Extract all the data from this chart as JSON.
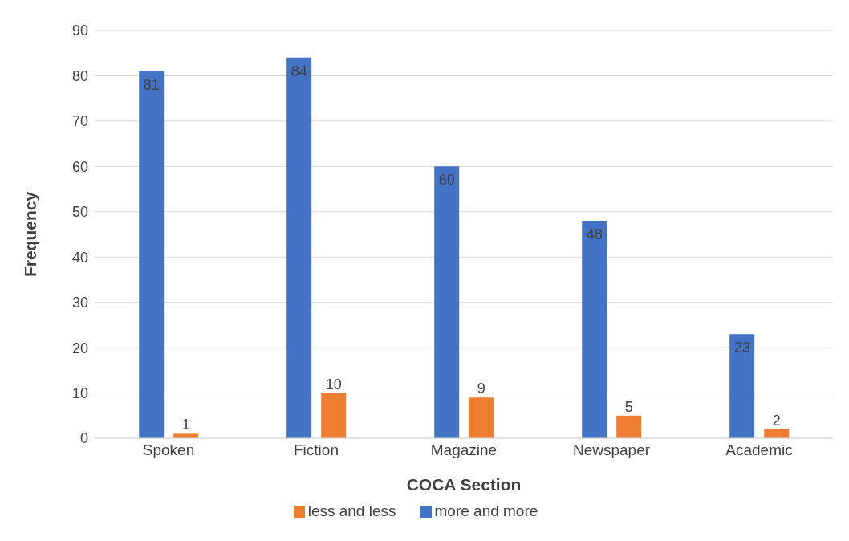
{
  "chart_data": {
    "type": "bar",
    "xlabel": "COCA Section",
    "ylabel": "Frequency",
    "categories": [
      "Spoken",
      "Fiction",
      "Magazine",
      "Newspaper",
      "Academic"
    ],
    "series": [
      {
        "name": "more and more",
        "color": "#4472c4",
        "values": [
          81,
          84,
          60,
          48,
          23
        ]
      },
      {
        "name": "less and less",
        "color": "#ed7d31",
        "values": [
          1,
          10,
          9,
          5,
          2
        ]
      }
    ],
    "ylim": [
      0,
      90
    ],
    "yticks": [
      0,
      10,
      20,
      30,
      40,
      50,
      60,
      70,
      80,
      90
    ],
    "grid": "y",
    "legend": "bottom",
    "data_labels": true
  }
}
